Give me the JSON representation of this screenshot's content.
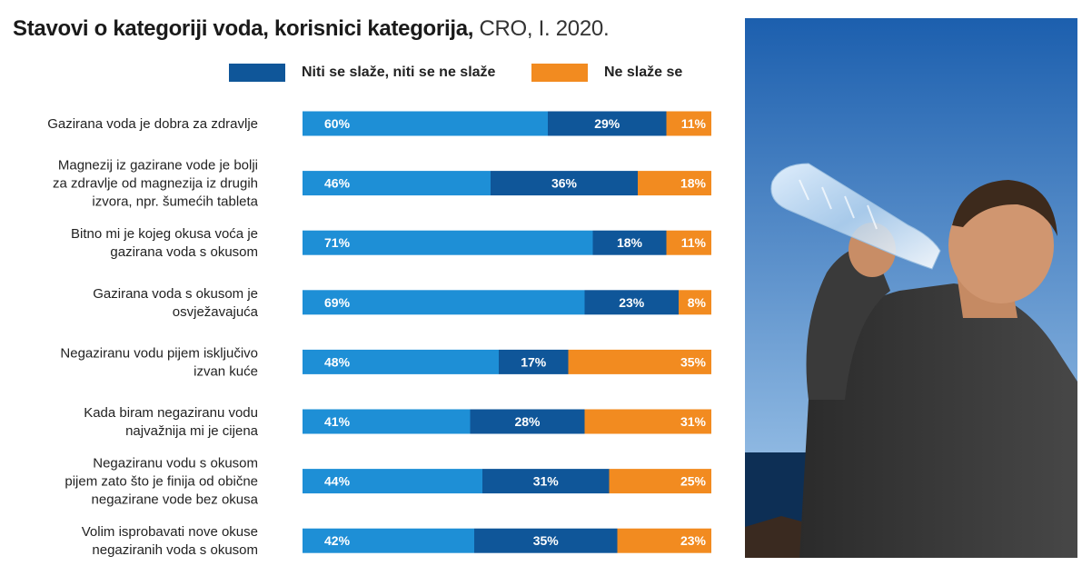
{
  "title": {
    "bold": "Stavovi o kategoriji voda, korisnici kategorija,",
    "light": "CRO, I. 2020."
  },
  "colors": {
    "agree": "#1e8fd6",
    "neutral": "#0f5699",
    "disagree": "#f28b20",
    "label_text": "#222222"
  },
  "chart_data": {
    "type": "bar",
    "orientation": "horizontal",
    "stacked": true,
    "normalized": true,
    "unit": "%",
    "categories": [
      [
        "Gazirana voda je dobra za zdravlje"
      ],
      [
        "Magnezij iz gazirane vode je bolji",
        "za zdravlje od magnezija iz drugih",
        "izvora, npr. šumećih tableta"
      ],
      [
        "Bitno mi je kojeg okusa voća je",
        "gazirana voda s okusom"
      ],
      [
        "Gazirana voda s okusom je",
        "osvježavajuća"
      ],
      [
        "Negaziranu vodu pijem isključivo",
        "izvan kuće"
      ],
      [
        "Kada biram negaziranu vodu",
        "najvažnija mi je cijena"
      ],
      [
        "Negaziranu vodu s okusom",
        "pijem zato što je finija od obične",
        "negazirane vode bez okusa"
      ],
      [
        "Volim isprobavati nove okuse",
        "negaziranih voda s okusom"
      ]
    ],
    "series": [
      {
        "name": "",
        "color_key": "agree",
        "values": [
          60,
          46,
          71,
          69,
          48,
          41,
          44,
          42
        ]
      },
      {
        "name": "Niti se slaže, niti se ne slaže",
        "color_key": "neutral",
        "values": [
          29,
          36,
          18,
          23,
          17,
          28,
          31,
          35
        ]
      },
      {
        "name": "Ne slaže se",
        "color_key": "disagree",
        "values": [
          11,
          18,
          11,
          8,
          35,
          31,
          25,
          23
        ]
      }
    ],
    "legend_position": "top",
    "grid": false
  },
  "photo": {
    "icon": "man-drinking-water-photo",
    "sky_top": "#1c5fae",
    "sky_bottom": "#a9cdee",
    "sea": "#0d2f55"
  }
}
